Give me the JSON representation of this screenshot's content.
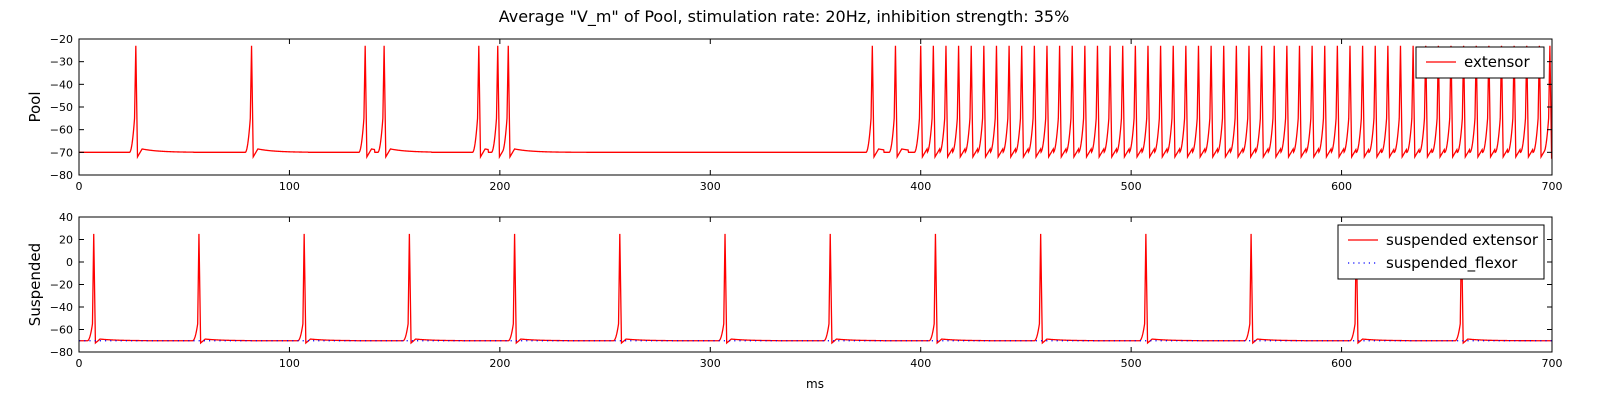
{
  "figure": {
    "title": "Average \"V_m\" of Pool, stimulation rate: 20Hz, inhibition strength: 35%",
    "xlabel": "ms"
  },
  "chart_data": [
    {
      "type": "line",
      "ylabel": "Pool",
      "xlabel": "",
      "xlim": [
        0,
        700
      ],
      "ylim": [
        -80,
        -20
      ],
      "xticks": [
        0,
        100,
        200,
        300,
        400,
        500,
        600,
        700
      ],
      "yticks": [
        -80,
        -70,
        -60,
        -50,
        -40,
        -30,
        -20
      ],
      "legend_position": "top-right",
      "rest_potential": -70,
      "series": [
        {
          "name": "extensor",
          "color": "#ff0000",
          "style": "solid",
          "spike_peak": -23,
          "spike_times": [
            27,
            82,
            136,
            145,
            190,
            199,
            204,
            377,
            388,
            400,
            406,
            412,
            418,
            424,
            430,
            436,
            442,
            448,
            454,
            460,
            466,
            472,
            478,
            484,
            490,
            496,
            502,
            508,
            514,
            520,
            526,
            532,
            538,
            544,
            550,
            556,
            562,
            568,
            574,
            580,
            586,
            592,
            598,
            604,
            610,
            616,
            622,
            628,
            634,
            640,
            646,
            652,
            658,
            664,
            670,
            676,
            682,
            688,
            694,
            699
          ]
        }
      ]
    },
    {
      "type": "line",
      "ylabel": "Suspended",
      "xlabel": "ms",
      "xlim": [
        0,
        700
      ],
      "ylim": [
        -80,
        40
      ],
      "xticks": [
        0,
        100,
        200,
        300,
        400,
        500,
        600,
        700
      ],
      "yticks": [
        -80,
        -60,
        -40,
        -20,
        0,
        20,
        40
      ],
      "legend_position": "top-right",
      "rest_potential": -70,
      "series": [
        {
          "name": "suspended extensor",
          "color": "#ff0000",
          "style": "solid",
          "spike_peak": 25,
          "spike_times": [
            7,
            57,
            107,
            157,
            207,
            257,
            307,
            357,
            407,
            457,
            507,
            557,
            607,
            657
          ]
        },
        {
          "name": "suspended_flexor",
          "color": "#0000ff",
          "style": "dotted",
          "constant_value": -70
        }
      ]
    }
  ]
}
